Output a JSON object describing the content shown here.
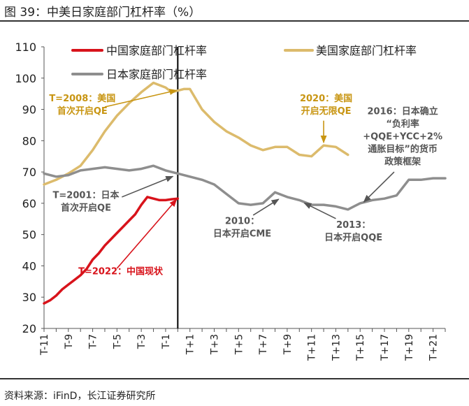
{
  "figure": {
    "title": "图 39：中美日家庭部门杠杆率（%）",
    "source": "资料来源：iFinD，长江证券研究所"
  },
  "chart_data": {
    "type": "line",
    "title": "中美日家庭部门杠杆率（%）",
    "xlabel": "",
    "ylabel": "",
    "ylim": [
      20,
      110
    ],
    "y_ticks": [
      20,
      30,
      40,
      50,
      60,
      70,
      80,
      90,
      100,
      110
    ],
    "x_range": [
      -11,
      22
    ],
    "x_ticks": [
      -11,
      -9,
      -7,
      -5,
      -3,
      -1,
      1,
      3,
      5,
      7,
      9,
      11,
      13,
      15,
      17,
      19,
      21
    ],
    "x_tick_labels": [
      "T-11",
      "T-9",
      "T-7",
      "T-5",
      "T-3",
      "T-1",
      "T+1",
      "T+3",
      "T+5",
      "T+7",
      "T+9",
      "T+11",
      "T+13",
      "T+15",
      "T+17",
      "T+19",
      "T+21"
    ],
    "reference_line_x": 0,
    "legend": [
      "中国家庭部门杠杆率",
      "美国家庭部门杠杆率",
      "日本家庭部门杠杆率"
    ],
    "series": [
      {
        "name": "中国家庭部门杠杆率",
        "color": "#d8131b",
        "x": [
          -11,
          -10.5,
          -10,
          -9.5,
          -9,
          -8.5,
          -8,
          -7.5,
          -7,
          -6.5,
          -6,
          -5.5,
          -5,
          -4.5,
          -4,
          -3.5,
          -3,
          -2.5,
          -2,
          -1.5,
          -1,
          -0.5,
          0
        ],
        "values": [
          28,
          29,
          30.5,
          32.5,
          34,
          35.5,
          37,
          39,
          42,
          44,
          46.5,
          48.5,
          50.5,
          52.5,
          54.5,
          56.5,
          59.5,
          62,
          61.5,
          61,
          61,
          61.3,
          61.5
        ]
      },
      {
        "name": "美国家庭部门杠杆率",
        "color": "#dcbb6c",
        "x": [
          -11,
          -10,
          -9,
          -8,
          -7,
          -6,
          -5,
          -4,
          -3,
          -2,
          -1,
          -0.5,
          0,
          0.5,
          1,
          2,
          3,
          4,
          5,
          6,
          7,
          8,
          9,
          10,
          11,
          12,
          13,
          14
        ],
        "values": [
          66,
          67.5,
          69.5,
          72,
          77,
          83,
          88,
          92,
          95.5,
          98.5,
          97,
          95.5,
          96,
          96.5,
          96.5,
          90,
          86,
          83,
          81,
          78.5,
          77,
          78,
          78,
          75.5,
          75,
          78.5,
          78,
          75.5
        ]
      },
      {
        "name": "日本家庭部门杠杆率",
        "color": "#8e8e8e",
        "x": [
          -11,
          -10,
          -9,
          -8,
          -7,
          -6,
          -5,
          -4,
          -3,
          -2,
          -1,
          0,
          1,
          2,
          3,
          4,
          5,
          6,
          7,
          8,
          9,
          10,
          11,
          12,
          13,
          14,
          15,
          16,
          17,
          18,
          19,
          20,
          21,
          22
        ],
        "values": [
          69.5,
          68.5,
          69,
          70.5,
          71,
          71.5,
          71,
          70.5,
          71,
          72,
          70.5,
          69.5,
          68.5,
          67.5,
          66,
          63,
          60,
          59.5,
          60,
          63.5,
          62,
          61,
          59.5,
          59.5,
          59,
          58,
          60,
          61,
          61.5,
          62.5,
          67.5,
          67.5,
          68,
          68
        ]
      }
    ],
    "annotations": [
      {
        "id": "cn2022",
        "text_lines": [
          "T=2022：中国现状"
        ],
        "color": "#d8131b",
        "series": "中国家庭部门杠杆率",
        "point": [
          0,
          61.5
        ],
        "label_at": [
          -4.7,
          39.5
        ],
        "label_x_data": -4.7,
        "label_y_data": 37.3,
        "arrow_from": [
          -5.0,
          39.2
        ],
        "arrow_to": [
          -0.1,
          61.2
        ],
        "anchor": "middle"
      },
      {
        "id": "us2008",
        "text_lines": [
          "T=2008：美国",
          "首次开启QE"
        ],
        "color": "#c89512",
        "series": "美国家庭部门杠杆率",
        "point": [
          0,
          96
        ],
        "label_x_data": -7.85,
        "label_y_data": 92.6,
        "arrow_from": [
          -6.0,
          90.8
        ],
        "arrow_to": [
          -0.1,
          96.1
        ],
        "anchor": "middle"
      },
      {
        "id": "us2020",
        "text_lines": [
          "2020：美国",
          "开启无限QE"
        ],
        "color": "#c89512",
        "series": "美国家庭部门杠杆率",
        "point": [
          12,
          78.5
        ],
        "label_x_data": 12.2,
        "label_y_data": 92.6,
        "arrow_from": [
          12.0,
          86.4
        ],
        "arrow_to": [
          12.0,
          79.4
        ],
        "anchor": "middle"
      },
      {
        "id": "jp2001",
        "text_lines": [
          "T=2001：日本",
          "首次开启QE"
        ],
        "color": "#555",
        "series": "日本家庭部门杠杆率",
        "point": [
          0,
          69.5
        ],
        "label_x_data": -7.55,
        "label_y_data": 61.6,
        "arrow_from": [
          -4.6,
          62.0
        ],
        "arrow_to": [
          -0.4,
          68.6
        ],
        "anchor": "middle"
      },
      {
        "id": "jp2010",
        "text_lines": [
          "2010：",
          "日本开启CME"
        ],
        "color": "#555",
        "series": "日本家庭部门杠杆率",
        "point": [
          8.3,
          61.5
        ],
        "label_x_data": 5.3,
        "label_y_data": 53.4,
        "arrow_from": [
          6.2,
          56.2
        ],
        "arrow_to": [
          8.3,
          61.3
        ],
        "anchor": "middle"
      },
      {
        "id": "jp2013",
        "text_lines": [
          "2013：",
          "日本开启QQE"
        ],
        "color": "#555",
        "series": "日本家庭部门杠杆率",
        "point": [
          10.2,
          61
        ],
        "label_x_data": 14.45,
        "label_y_data": 52.2,
        "arrow_from": [
          13.0,
          55.1
        ],
        "arrow_to": [
          10.4,
          60.1
        ],
        "anchor": "middle"
      },
      {
        "id": "jp2016",
        "text_lines": [
          "2016：日本确立",
          "“负利率",
          "+QQE+YCC+2%",
          "通胀目标”的货币",
          "政策框架"
        ],
        "color": "#555",
        "series": "日本家庭部门杠杆率",
        "point": [
          15.2,
          60
        ],
        "label_x_data": 18.5,
        "label_y_data": 88.4,
        "arrow_from": [
          17.8,
          70.0
        ],
        "arrow_to": [
          15.3,
          60.4
        ],
        "anchor": "middle"
      }
    ]
  }
}
